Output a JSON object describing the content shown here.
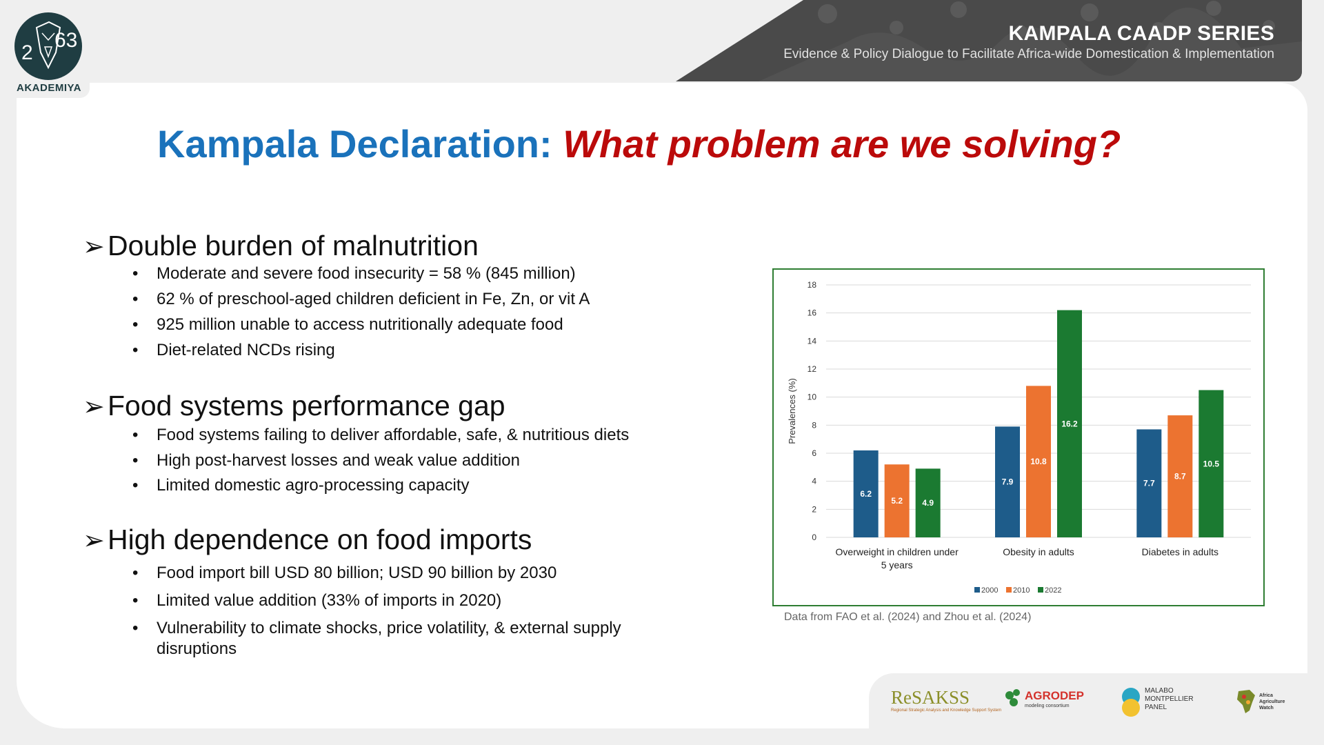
{
  "branding": {
    "logo_word": "AKADEMIYA",
    "banner_title": "KAMPALA CAADP SERIES",
    "banner_subtitle": "Evidence & Policy Dialogue to Facilitate Africa-wide Domestication & Implementation"
  },
  "title": {
    "part1": "Kampala Declaration: ",
    "part2": "What problem are we solving?"
  },
  "sections": [
    {
      "heading": "Double burden of malnutrition",
      "bullets": [
        "Moderate and severe food insecurity = 58 % (845 million)",
        "62 % of preschool-aged children deficient in Fe, Zn, or vit A",
        "925 million unable to access nutritionally adequate food",
        "Diet-related NCDs rising"
      ]
    },
    {
      "heading": "Food systems performance gap",
      "bullets": [
        "Food systems failing to deliver affordable, safe, & nutritious diets",
        "High post-harvest losses and weak value addition",
        "Limited domestic agro-processing capacity"
      ]
    },
    {
      "heading": "High dependence on food imports",
      "bullets": [
        "Food import bill USD 80 billion; USD 90 billion by 2030",
        "Limited value addition (33% of imports in 2020)",
        "Vulnerability to climate shocks, price volatility, & external supply disruptions"
      ]
    }
  ],
  "chart_data": {
    "type": "bar",
    "categories": [
      "Overweight in children under 5 years",
      "Obesity in adults",
      "Diabetes in adults"
    ],
    "category_lines": [
      [
        "Overweight in children under",
        "5 years"
      ],
      [
        "Obesity in adults"
      ],
      [
        "Diabetes in adults"
      ]
    ],
    "series": [
      {
        "name": "2000",
        "values": [
          6.2,
          7.9,
          7.7
        ],
        "color": "#1e5c8a"
      },
      {
        "name": "2010",
        "values": [
          5.2,
          10.8,
          8.7
        ],
        "color": "#ec7330"
      },
      {
        "name": "2022",
        "values": [
          4.9,
          16.2,
          10.5
        ],
        "color": "#1b7a31"
      }
    ],
    "ylabel": "Prevalences (%)",
    "ylim": [
      0,
      18
    ],
    "yticks": [
      0,
      2,
      4,
      6,
      8,
      10,
      12,
      14,
      16,
      18
    ],
    "grid": true,
    "legend": "bottom"
  },
  "source_note": "Data from FAO et al. (2024) and Zhou et al. (2024)",
  "partners": {
    "resakss": "ReSAKSS",
    "resakss_sub": "Regional Strategic Analysis and Knowledge Support System",
    "agrodep": "AGRODEP",
    "agrodep_sub": "modeling consortium",
    "malabo": [
      "MALABO",
      "MONTPELLIER",
      "PANEL"
    ],
    "aaw": [
      "Africa",
      "Agriculture",
      "Watch"
    ]
  }
}
